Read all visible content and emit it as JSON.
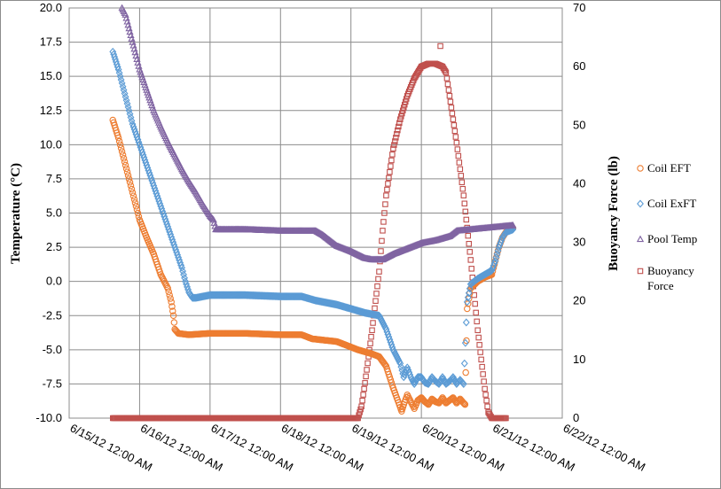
{
  "chart_data": {
    "type": "scatter",
    "y_label": "Temperature (°C)",
    "y2_label": "Buoyancy Force (lb)",
    "ylim": [
      -10,
      20
    ],
    "y2lim": [
      0,
      70
    ],
    "y_ticks": [
      "20.0",
      "17.5",
      "15.0",
      "12.5",
      "10.0",
      "7.5",
      "5.0",
      "2.5",
      "0.0",
      "-2.5",
      "-5.0",
      "-7.5",
      "-10.0"
    ],
    "y2_ticks": [
      "70",
      "60",
      "50",
      "40",
      "30",
      "20",
      "10",
      "0"
    ],
    "x_ticks": [
      "6/15/12 12:00 AM",
      "6/16/12 12:00 AM",
      "6/17/12 12:00 AM",
      "6/18/12 12:00 AM",
      "6/19/12 12:00 AM",
      "6/20/12 12:00 AM",
      "6/21/12 12:00 AM",
      "6/22/12 12:00 AM"
    ],
    "xlim_days": [
      0,
      7
    ],
    "gridlines": true,
    "legend_position": "right",
    "series": [
      {
        "name": "Coil EFT",
        "axis": "left",
        "color": "#ed7d31",
        "marker": "circle",
        "points": [
          [
            0.62,
            11.8
          ],
          [
            0.7,
            10.5
          ],
          [
            0.8,
            8.5
          ],
          [
            0.9,
            6.5
          ],
          [
            1.0,
            4.5
          ],
          [
            1.1,
            3.2
          ],
          [
            1.2,
            2.0
          ],
          [
            1.3,
            0.5
          ],
          [
            1.4,
            -0.5
          ],
          [
            1.45,
            -1.5
          ],
          [
            1.48,
            -2.5
          ],
          [
            1.5,
            -3.5
          ],
          [
            1.55,
            -3.8
          ],
          [
            1.7,
            -3.9
          ],
          [
            2.0,
            -3.8
          ],
          [
            2.5,
            -3.8
          ],
          [
            3.0,
            -3.9
          ],
          [
            3.3,
            -3.9
          ],
          [
            3.45,
            -4.2
          ],
          [
            3.8,
            -4.4
          ],
          [
            4.1,
            -5.0
          ],
          [
            4.3,
            -5.3
          ],
          [
            4.4,
            -5.5
          ],
          [
            4.5,
            -6.2
          ],
          [
            4.55,
            -7.0
          ],
          [
            4.6,
            -7.8
          ],
          [
            4.65,
            -8.5
          ],
          [
            4.7,
            -9.2
          ],
          [
            4.72,
            -9.5
          ],
          [
            4.75,
            -9.0
          ],
          [
            4.8,
            -8.3
          ],
          [
            4.85,
            -8.8
          ],
          [
            4.9,
            -9.3
          ],
          [
            4.95,
            -8.7
          ],
          [
            5.0,
            -8.5
          ],
          [
            5.05,
            -8.8
          ],
          [
            5.1,
            -9.0
          ],
          [
            5.15,
            -8.6
          ],
          [
            5.2,
            -8.8
          ],
          [
            5.25,
            -8.9
          ],
          [
            5.3,
            -8.5
          ],
          [
            5.35,
            -8.9
          ],
          [
            5.4,
            -8.7
          ],
          [
            5.45,
            -8.5
          ],
          [
            5.5,
            -8.9
          ],
          [
            5.55,
            -8.6
          ],
          [
            5.6,
            -8.9
          ],
          [
            5.62,
            -9.0
          ],
          [
            5.65,
            -2.0
          ],
          [
            5.7,
            -0.5
          ],
          [
            5.8,
            0.0
          ],
          [
            5.9,
            0.3
          ],
          [
            6.0,
            0.5
          ],
          [
            6.05,
            1.5
          ],
          [
            6.1,
            2.5
          ],
          [
            6.15,
            3.2
          ],
          [
            6.2,
            3.6
          ],
          [
            6.3,
            3.9
          ]
        ]
      },
      {
        "name": "Coil ExFT",
        "axis": "left",
        "color": "#5b9bd5",
        "marker": "diamond",
        "points": [
          [
            0.62,
            16.8
          ],
          [
            0.7,
            15.5
          ],
          [
            0.8,
            13.5
          ],
          [
            0.9,
            11.5
          ],
          [
            1.0,
            10.0
          ],
          [
            1.1,
            8.5
          ],
          [
            1.2,
            7.0
          ],
          [
            1.3,
            5.5
          ],
          [
            1.4,
            4.0
          ],
          [
            1.5,
            2.5
          ],
          [
            1.6,
            1.0
          ],
          [
            1.65,
            0.0
          ],
          [
            1.7,
            -0.8
          ],
          [
            1.75,
            -1.2
          ],
          [
            1.8,
            -1.2
          ],
          [
            1.9,
            -1.1
          ],
          [
            2.0,
            -1.0
          ],
          [
            2.5,
            -1.0
          ],
          [
            3.0,
            -1.1
          ],
          [
            3.3,
            -1.1
          ],
          [
            3.5,
            -1.4
          ],
          [
            3.8,
            -1.7
          ],
          [
            4.0,
            -2.0
          ],
          [
            4.2,
            -2.3
          ],
          [
            4.3,
            -2.4
          ],
          [
            4.4,
            -2.5
          ],
          [
            4.5,
            -3.5
          ],
          [
            4.6,
            -5.0
          ],
          [
            4.7,
            -6.0
          ],
          [
            4.75,
            -7.0
          ],
          [
            4.8,
            -6.3
          ],
          [
            4.85,
            -7.0
          ],
          [
            4.9,
            -7.5
          ],
          [
            4.95,
            -7.0
          ],
          [
            5.0,
            -7.0
          ],
          [
            5.05,
            -7.4
          ],
          [
            5.1,
            -7.5
          ],
          [
            5.15,
            -7.0
          ],
          [
            5.2,
            -7.3
          ],
          [
            5.25,
            -7.5
          ],
          [
            5.3,
            -7.0
          ],
          [
            5.35,
            -7.5
          ],
          [
            5.4,
            -7.3
          ],
          [
            5.45,
            -7.0
          ],
          [
            5.5,
            -7.5
          ],
          [
            5.55,
            -7.2
          ],
          [
            5.6,
            -7.5
          ],
          [
            5.65,
            -1.5
          ],
          [
            5.7,
            -0.2
          ],
          [
            5.8,
            0.2
          ],
          [
            5.9,
            0.5
          ],
          [
            6.0,
            0.8
          ],
          [
            6.05,
            1.5
          ],
          [
            6.1,
            2.5
          ],
          [
            6.15,
            3.2
          ],
          [
            6.2,
            3.6
          ],
          [
            6.3,
            3.8
          ]
        ]
      },
      {
        "name": "Pool Temp",
        "axis": "left",
        "color": "#8064a2",
        "marker": "triangle",
        "points": [
          [
            0.75,
            20.0
          ],
          [
            0.8,
            19.5
          ],
          [
            0.9,
            17.5
          ],
          [
            1.0,
            15.5
          ],
          [
            1.1,
            14.0
          ],
          [
            1.2,
            12.5
          ],
          [
            1.3,
            11.3
          ],
          [
            1.4,
            10.2
          ],
          [
            1.5,
            9.2
          ],
          [
            1.6,
            8.2
          ],
          [
            1.7,
            7.3
          ],
          [
            1.8,
            6.5
          ],
          [
            1.9,
            5.6
          ],
          [
            2.0,
            4.8
          ],
          [
            2.05,
            4.5
          ],
          [
            2.08,
            3.8
          ],
          [
            2.2,
            3.8
          ],
          [
            2.5,
            3.8
          ],
          [
            3.0,
            3.7
          ],
          [
            3.5,
            3.7
          ],
          [
            3.6,
            3.4
          ],
          [
            3.8,
            2.6
          ],
          [
            4.0,
            2.2
          ],
          [
            4.2,
            1.7
          ],
          [
            4.3,
            1.6
          ],
          [
            4.45,
            1.6
          ],
          [
            4.6,
            2.0
          ],
          [
            4.8,
            2.4
          ],
          [
            5.0,
            2.8
          ],
          [
            5.2,
            3.0
          ],
          [
            5.4,
            3.3
          ],
          [
            5.5,
            3.7
          ],
          [
            5.7,
            3.8
          ],
          [
            5.9,
            3.9
          ],
          [
            6.1,
            4.0
          ],
          [
            6.3,
            4.1
          ]
        ]
      },
      {
        "name": "Buoyancy Force",
        "axis": "right",
        "color": "#c0504d",
        "marker": "square",
        "points": [
          [
            0.62,
            0
          ],
          [
            1.0,
            0
          ],
          [
            1.5,
            0
          ],
          [
            2.0,
            0
          ],
          [
            2.5,
            0
          ],
          [
            3.0,
            0
          ],
          [
            3.5,
            0
          ],
          [
            4.0,
            0
          ],
          [
            4.1,
            0
          ],
          [
            4.15,
            2
          ],
          [
            4.2,
            6
          ],
          [
            4.3,
            15
          ],
          [
            4.4,
            25
          ],
          [
            4.45,
            32
          ],
          [
            4.5,
            38
          ],
          [
            4.55,
            42
          ],
          [
            4.6,
            46
          ],
          [
            4.7,
            51
          ],
          [
            4.8,
            55
          ],
          [
            4.9,
            58
          ],
          [
            5.0,
            60
          ],
          [
            5.1,
            60.5
          ],
          [
            5.2,
            60.5
          ],
          [
            5.3,
            60
          ],
          [
            5.35,
            59
          ],
          [
            5.4,
            55
          ],
          [
            5.5,
            47
          ],
          [
            5.6,
            38
          ],
          [
            5.7,
            27
          ],
          [
            5.8,
            15
          ],
          [
            5.85,
            10
          ],
          [
            5.9,
            5
          ],
          [
            5.95,
            1
          ],
          [
            6.0,
            0
          ],
          [
            6.1,
            0
          ],
          [
            6.2,
            0
          ],
          [
            5.27,
            63.5
          ]
        ]
      }
    ]
  }
}
